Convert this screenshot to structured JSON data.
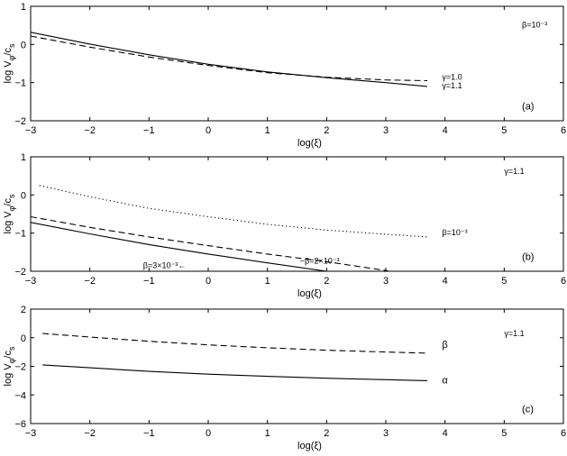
{
  "chart_data": [
    {
      "type": "line",
      "panel_label": "(a)",
      "xlabel": "log(ξ)",
      "ylabel": "log V_φ/c_s",
      "xlim": [
        -3,
        6
      ],
      "ylim": [
        -2,
        1
      ],
      "xticks": [
        -3,
        -2,
        -1,
        0,
        1,
        2,
        3,
        4,
        5,
        6
      ],
      "yticks": [
        -2,
        -1,
        0,
        1
      ],
      "grid": false,
      "annotations": [
        {
          "text": "β=10⁻³",
          "x": 5.3,
          "y": 0.45
        },
        {
          "text": "γ=1.0",
          "x": 3.95,
          "y": -0.92
        },
        {
          "text": "γ=1.1",
          "x": 3.95,
          "y": -1.15
        }
      ],
      "series": [
        {
          "style": "dashed",
          "x": [
            -3,
            -2,
            -1,
            0,
            1,
            2,
            3,
            3.7
          ],
          "y": [
            0.22,
            -0.07,
            -0.33,
            -0.55,
            -0.74,
            -0.86,
            -0.93,
            -0.95
          ]
        },
        {
          "style": "solid",
          "x": [
            -3,
            -2,
            -1,
            0,
            1,
            2,
            3,
            3.7
          ],
          "y": [
            0.32,
            0.01,
            -0.27,
            -0.52,
            -0.72,
            -0.87,
            -1.0,
            -1.1
          ]
        }
      ]
    },
    {
      "type": "line",
      "panel_label": "(b)",
      "xlabel": "log(ξ)",
      "ylabel": "log V_φ/c_s",
      "xlim": [
        -3,
        6
      ],
      "ylim": [
        -2,
        1
      ],
      "xticks": [
        -3,
        -2,
        -1,
        0,
        1,
        2,
        3,
        4,
        5,
        6
      ],
      "yticks": [
        -2,
        -1,
        0,
        1
      ],
      "grid": false,
      "annotations": [
        {
          "text": "γ=1.1",
          "x": 5.0,
          "y": 0.55
        },
        {
          "text": "β=10⁻³",
          "x": 3.95,
          "y": -1.05
        },
        {
          "text": "−β=2×10⁻³",
          "x": 1.55,
          "y": -1.8
        },
        {
          "text": "β=3×10⁻³←",
          "x": -1.1,
          "y": -1.92
        }
      ],
      "series": [
        {
          "style": "dotted",
          "x": [
            -2.85,
            -2,
            -1,
            0,
            1,
            2,
            3,
            3.7
          ],
          "y": [
            0.25,
            -0.05,
            -0.35,
            -0.57,
            -0.77,
            -0.92,
            -1.03,
            -1.1
          ]
        },
        {
          "style": "dashed",
          "x": [
            -3,
            -2,
            -1,
            0,
            1,
            2,
            3,
            3.05
          ],
          "y": [
            -0.57,
            -0.85,
            -1.1,
            -1.33,
            -1.55,
            -1.75,
            -1.98,
            -2.0
          ]
        },
        {
          "style": "solid",
          "x": [
            -3,
            -2,
            -1,
            0,
            1,
            2
          ],
          "y": [
            -0.72,
            -1.02,
            -1.3,
            -1.55,
            -1.78,
            -2.0
          ]
        }
      ]
    },
    {
      "type": "line",
      "panel_label": "(c)",
      "xlabel": "log(ξ)",
      "ylabel": "log V_φ/c_s",
      "xlim": [
        -3,
        6
      ],
      "ylim": [
        -6,
        2
      ],
      "xticks": [
        -3,
        -2,
        -1,
        0,
        1,
        2,
        3,
        4,
        5,
        6
      ],
      "yticks": [
        -6,
        -4,
        -2,
        0,
        2
      ],
      "grid": false,
      "annotations": [
        {
          "text": "γ=1.1",
          "x": 5.0,
          "y": 0.1
        },
        {
          "text": "β",
          "x": 3.95,
          "y": -0.7
        },
        {
          "text": "α",
          "x": 3.95,
          "y": -3.2
        }
      ],
      "series": [
        {
          "style": "dashed",
          "x": [
            -2.8,
            -2,
            -1,
            0,
            1,
            2,
            3,
            3.7
          ],
          "y": [
            0.3,
            0.05,
            -0.25,
            -0.5,
            -0.7,
            -0.87,
            -1.0,
            -1.08
          ]
        },
        {
          "style": "solid",
          "x": [
            -2.8,
            -2,
            -1,
            0,
            1,
            2,
            3,
            3.7
          ],
          "y": [
            -1.9,
            -2.1,
            -2.35,
            -2.55,
            -2.7,
            -2.83,
            -2.93,
            -3.0
          ]
        }
      ]
    }
  ]
}
